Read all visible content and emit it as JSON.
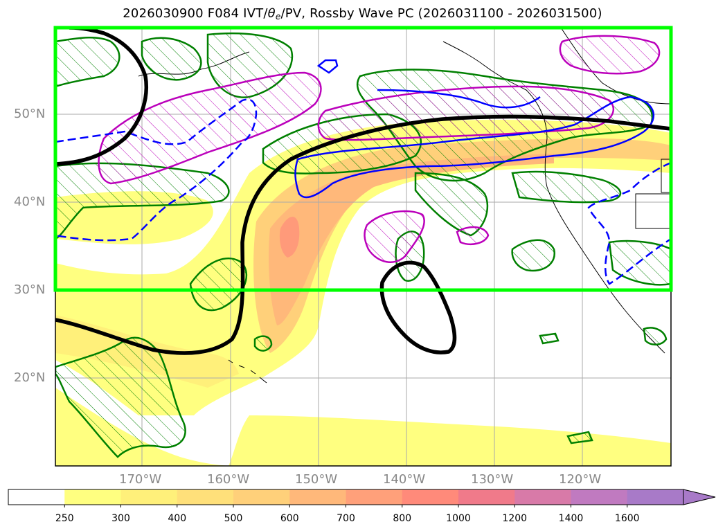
{
  "title": {
    "prefix": "2026030900 F084 IVT/",
    "theta_symbol": "θ",
    "theta_subscript": "e",
    "suffix": "/PV, Rossby Wave PC (2026031100 - 2026031500)"
  },
  "map": {
    "lat_labels": [
      "50°N",
      "40°N",
      "30°N",
      "20°N"
    ],
    "lon_labels": [
      "170°W",
      "160°W",
      "150°W",
      "140°W",
      "130°W",
      "120°W"
    ],
    "highlight_box_color": "#00ff00",
    "contour_colors": {
      "ivt_anomaly_green": "#008000",
      "pv_magenta": "#bb00bb",
      "theta_blue": "#0000ff",
      "pc_black": "#000000"
    }
  },
  "colorbar": {
    "levels": [
      "250",
      "300",
      "400",
      "500",
      "600",
      "700",
      "800",
      "1000",
      "1200",
      "1400",
      "1600"
    ],
    "colors": [
      "#ffffff",
      "#ffff80",
      "#fff07a",
      "#ffe07a",
      "#ffd07a",
      "#ffb87a",
      "#ffa07a",
      "#ff8a7a",
      "#f07a8a",
      "#d87aa8",
      "#c07ac0",
      "#a87ac8"
    ]
  }
}
